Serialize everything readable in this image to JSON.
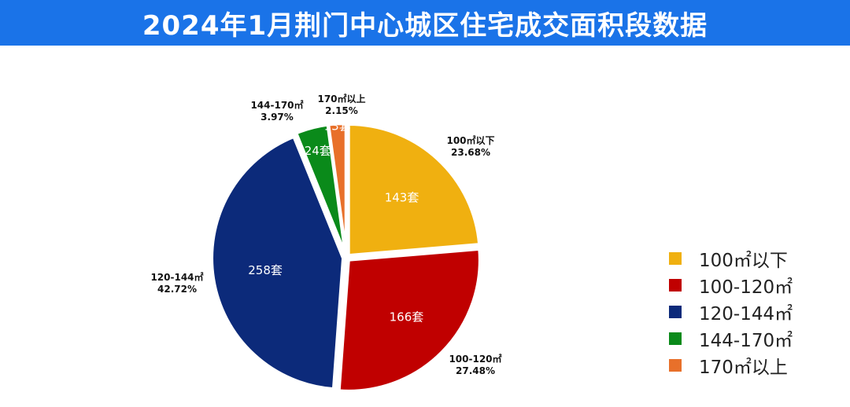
{
  "header": {
    "title": "2024年1月荆门中心城区住宅成交面积段数据"
  },
  "chart_data": {
    "type": "pie",
    "title": "2024年1月荆门中心城区住宅成交面积段数据",
    "unit": "套",
    "slices": [
      {
        "category": "100㎡以下",
        "value": 143,
        "percent": "23.68%",
        "value_label": "143套",
        "color": "#f0b010"
      },
      {
        "category": "100-120㎡",
        "value": 166,
        "percent": "27.48%",
        "value_label": "166套",
        "color": "#c00000"
      },
      {
        "category": "120-144㎡",
        "value": 258,
        "percent": "42.72%",
        "value_label": "258套",
        "color": "#0c2a7a"
      },
      {
        "category": "144-170㎡",
        "value": 24,
        "percent": "3.97%",
        "value_label": "24套",
        "color": "#0a8a1a"
      },
      {
        "category": "170㎡以上",
        "value": 13,
        "percent": "2.15%",
        "value_label": "13套",
        "color": "#e8702a"
      }
    ],
    "legend_position": "right",
    "start": "top, clockwise"
  }
}
